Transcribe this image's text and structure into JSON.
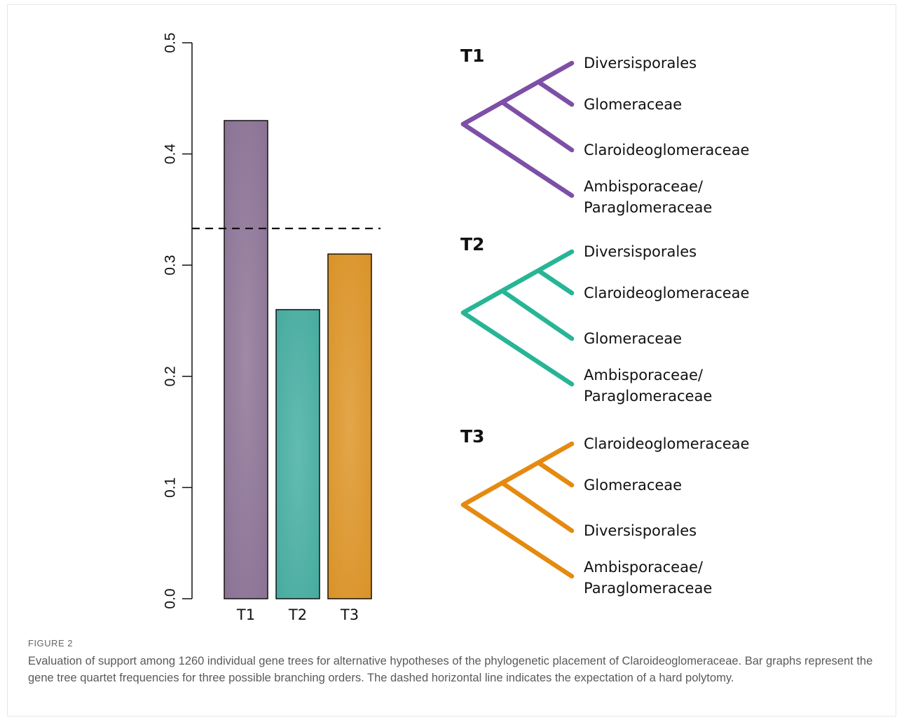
{
  "chart_data": {
    "type": "bar",
    "categories": [
      "T1",
      "T2",
      "T3"
    ],
    "values": [
      0.43,
      0.26,
      0.31
    ],
    "ylim": [
      0,
      0.5
    ],
    "yticks": [
      "0.0",
      "0.1",
      "0.2",
      "0.3",
      "0.4",
      "0.5"
    ],
    "reference_line": {
      "value": 0.333,
      "style": "dashed"
    },
    "colors": [
      "#9a82a0",
      "#5ab6aa",
      "#e0a23c"
    ],
    "grid": false
  },
  "trees": [
    {
      "title": "T1",
      "color": "#7d4fa6",
      "taxa": [
        "Diversisporales",
        "Glomeraceae",
        "Claroideoglomeraceae",
        "Ambisporaceae/",
        "Paraglomeraceae"
      ]
    },
    {
      "title": "T2",
      "color": "#27b596",
      "taxa": [
        "Diversisporales",
        "Claroideoglomeraceae",
        "Glomeraceae",
        "Ambisporaceae/",
        "Paraglomeraceae"
      ]
    },
    {
      "title": "T3",
      "color": "#e58a10",
      "taxa": [
        "Claroideoglomeraceae",
        "Glomeraceae",
        "Diversisporales",
        "Ambisporaceae/",
        "Paraglomeraceae"
      ]
    }
  ],
  "caption": {
    "label": "FIGURE 2",
    "text": "Evaluation of support among 1260 individual gene trees for alternative hypotheses of the phylogenetic placement of Claroideoglomeraceae. Bar graphs represent the gene tree quartet frequencies for three possible branching orders. The dashed horizontal line indicates the expectation of a hard polytomy."
  }
}
